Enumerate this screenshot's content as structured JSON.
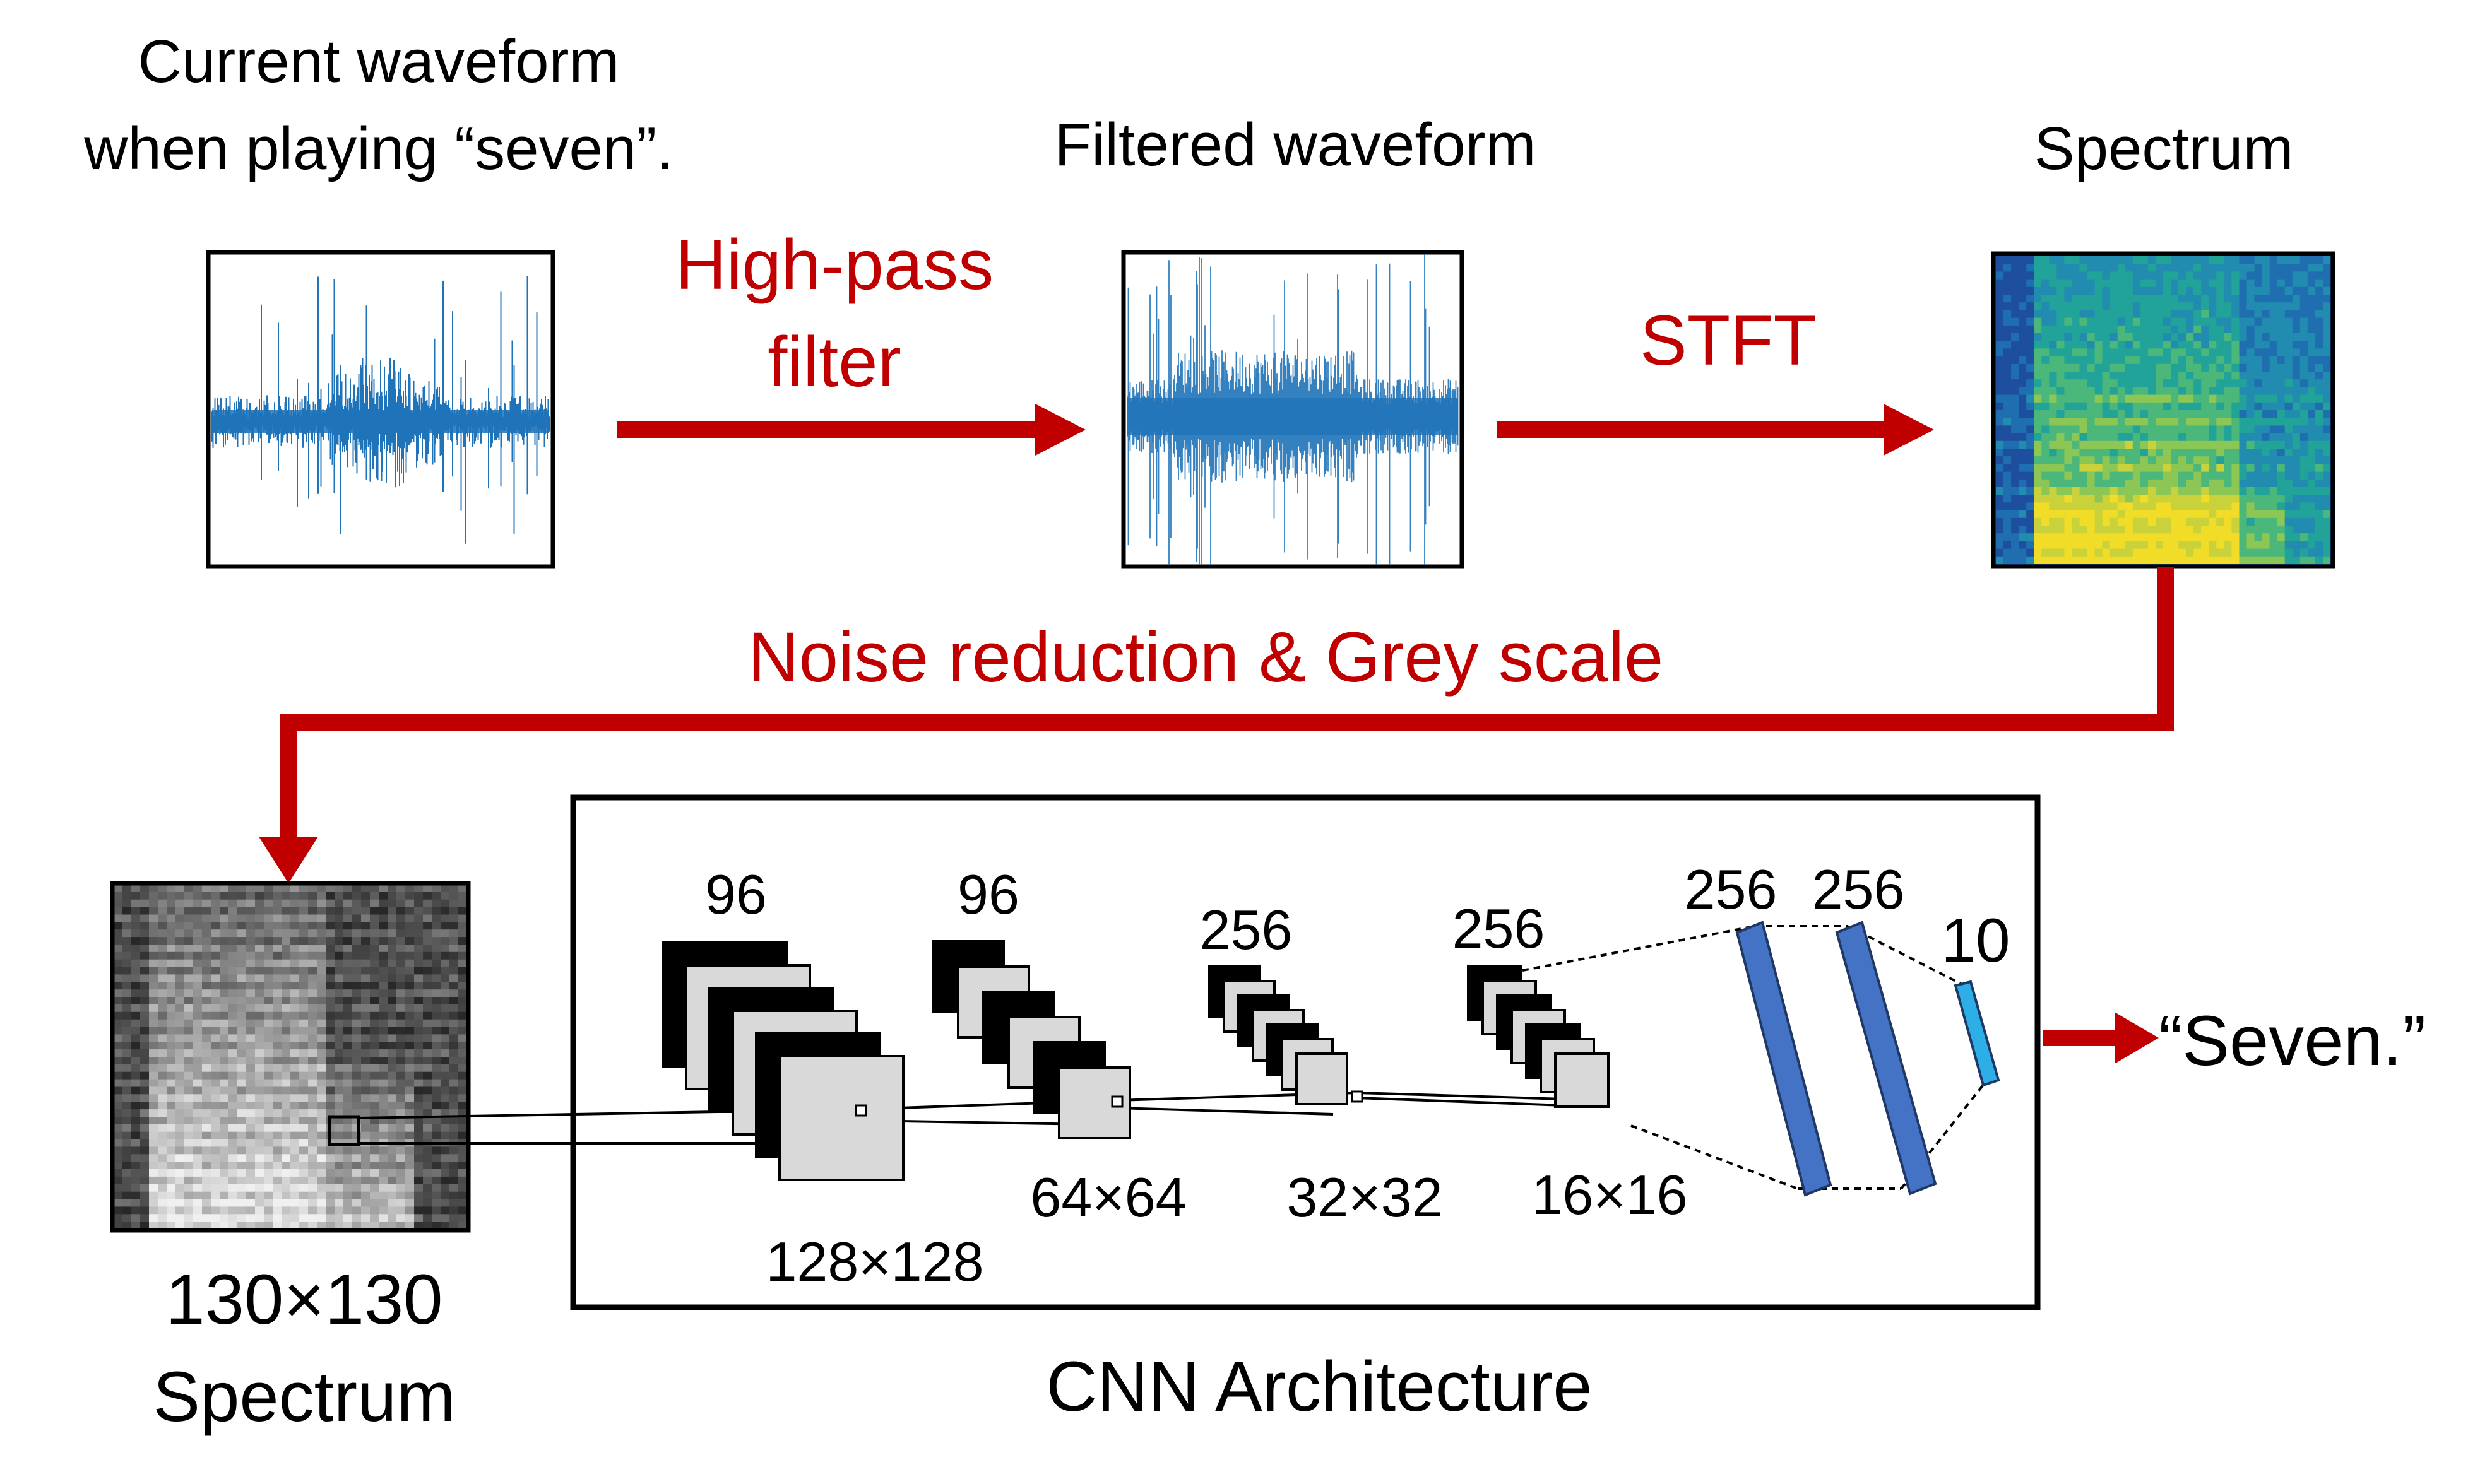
{
  "colors": {
    "arrow_red": "#c00000",
    "waveform_blue": "#1f73b8",
    "fc_blue": "#4472c4",
    "output_cyan": "#2eaee6",
    "feature_grey": "#d9d9d9"
  },
  "stages": {
    "current_waveform": {
      "line1": "Current waveform",
      "line2": "when playing “seven”."
    },
    "filtered_waveform": {
      "title": "Filtered waveform"
    },
    "spectrum": {
      "title": "Spectrum"
    },
    "grey_spectrum": {
      "line1": "130×130",
      "line2": "Spectrum"
    }
  },
  "steps": {
    "highpass": {
      "line1": "High-pass",
      "line2": "filter"
    },
    "stft": {
      "label": "STFT"
    },
    "noise": {
      "label": "Noise reduction & Grey scale"
    }
  },
  "cnn": {
    "title": "CNN Architecture",
    "layers": [
      {
        "channels": "96",
        "size": "128×128"
      },
      {
        "channels": "96",
        "size": "64×64"
      },
      {
        "channels": "256",
        "size": "32×32"
      },
      {
        "channels": "256",
        "size": "16×16"
      }
    ],
    "fc": [
      {
        "units": "256"
      },
      {
        "units": "256"
      },
      {
        "units": "10"
      }
    ],
    "output": "“Seven.”"
  }
}
